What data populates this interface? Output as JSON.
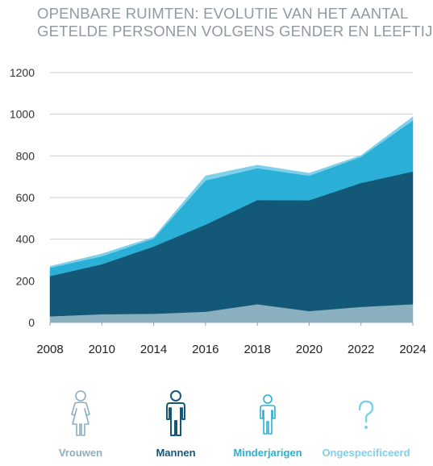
{
  "title_lines": [
    "OPENBARE RUIMTEN: EVOLUTIE VAN HET AANTAL",
    "GETELDE PERSONEN VOLGENS GENDER EN LEEFTIJD"
  ],
  "chart_data": {
    "type": "area",
    "stacked": true,
    "x": [
      "2008",
      "2010",
      "2014",
      "2016",
      "2018",
      "2020",
      "2022",
      "2024"
    ],
    "ylim": [
      0,
      1200
    ],
    "yticks": [
      0,
      200,
      400,
      600,
      800,
      1000,
      1200
    ],
    "grid": true,
    "series": [
      {
        "name": "Vrouwen",
        "color": "#8aafbf",
        "values": [
          30,
          40,
          42,
          52,
          88,
          55,
          75,
          88
        ]
      },
      {
        "name": "Mannen",
        "color": "#145877",
        "values": [
          193,
          240,
          323,
          418,
          500,
          532,
          595,
          637
        ]
      },
      {
        "name": "Minderjarigen",
        "color": "#2ab0d6",
        "values": [
          40,
          38,
          38,
          212,
          153,
          118,
          125,
          245
        ]
      },
      {
        "name": "Ongespecificeerd",
        "color": "#7fd0ea",
        "values": [
          7,
          12,
          7,
          22,
          15,
          12,
          7,
          18
        ]
      }
    ]
  },
  "legend": [
    {
      "label": "Vrouwen",
      "icon": "woman-icon",
      "color": "#8aafbf"
    },
    {
      "label": "Mannen",
      "icon": "man-icon",
      "color": "#145877"
    },
    {
      "label": "Minderjarigen",
      "icon": "child-icon",
      "color": "#2ab0d6"
    },
    {
      "label": "Ongespecificeerd",
      "icon": "question-mark-icon",
      "color": "#7fd0ea"
    }
  ]
}
